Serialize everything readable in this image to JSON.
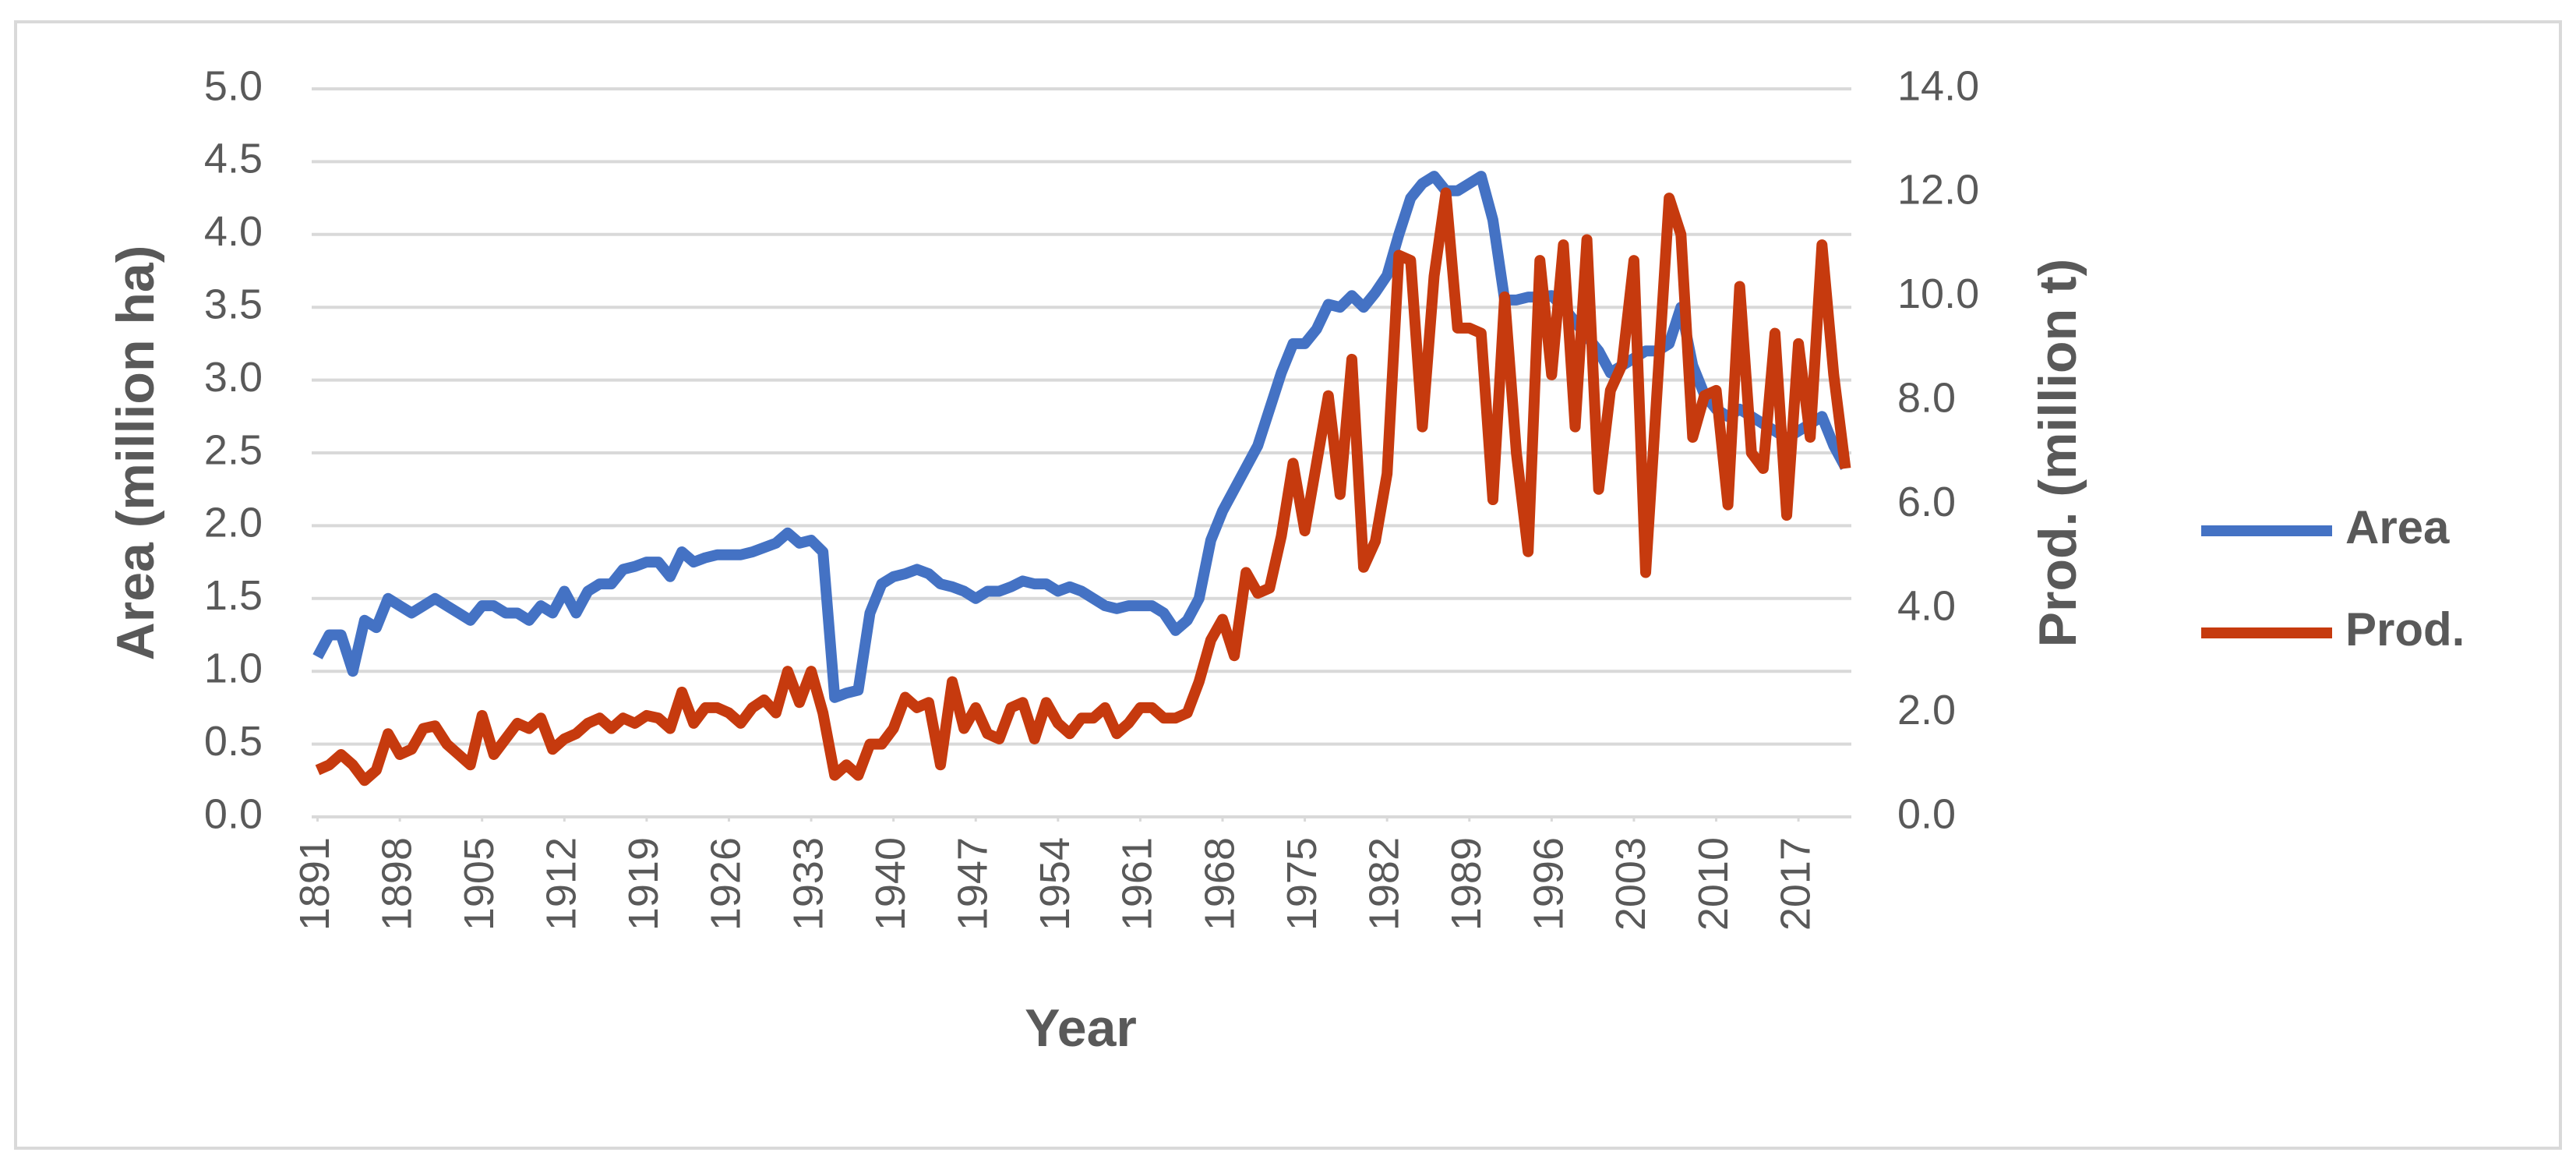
{
  "chart_data": {
    "type": "line",
    "x_label": "Year",
    "y_label": "Area (million ha)",
    "y2_label": "Prod. (million t)",
    "x": [
      1891,
      1892,
      1893,
      1894,
      1895,
      1896,
      1897,
      1898,
      1899,
      1900,
      1901,
      1902,
      1903,
      1904,
      1905,
      1906,
      1907,
      1908,
      1909,
      1910,
      1911,
      1912,
      1913,
      1914,
      1915,
      1916,
      1917,
      1918,
      1919,
      1920,
      1921,
      1922,
      1923,
      1924,
      1925,
      1926,
      1927,
      1928,
      1929,
      1930,
      1931,
      1932,
      1933,
      1934,
      1935,
      1936,
      1937,
      1938,
      1939,
      1940,
      1941,
      1942,
      1943,
      1944,
      1945,
      1946,
      1947,
      1948,
      1949,
      1950,
      1951,
      1952,
      1953,
      1954,
      1955,
      1956,
      1957,
      1958,
      1959,
      1960,
      1961,
      1962,
      1963,
      1964,
      1965,
      1966,
      1967,
      1968,
      1969,
      1970,
      1971,
      1972,
      1973,
      1974,
      1975,
      1976,
      1977,
      1978,
      1979,
      1980,
      1981,
      1982,
      1983,
      1984,
      1985,
      1986,
      1987,
      1988,
      1989,
      1990,
      1991,
      1992,
      1993,
      1994,
      1995,
      1996,
      1997,
      1998,
      1999,
      2000,
      2001,
      2002,
      2003,
      2004,
      2005,
      2006,
      2007,
      2008,
      2009,
      2010,
      2011,
      2012,
      2013,
      2014,
      2015,
      2016,
      2017,
      2018,
      2019,
      2020,
      2021
    ],
    "xlim": [
      1890.5,
      2021.5
    ],
    "xticks": [
      1891,
      1898,
      1905,
      1912,
      1919,
      1926,
      1933,
      1940,
      1947,
      1954,
      1961,
      1968,
      1975,
      1982,
      1989,
      1996,
      2003,
      2010,
      2017
    ],
    "ylim": [
      0,
      5
    ],
    "yticks": [
      {
        "value": 0,
        "label": "0.0"
      },
      0.5,
      {
        "value": 1,
        "label": "1.0"
      },
      1.5,
      {
        "value": 2,
        "label": "2.0"
      },
      2.5,
      {
        "value": 3,
        "label": "3.0"
      },
      3.5,
      {
        "value": 4,
        "label": "4.0"
      },
      4.5,
      {
        "value": 5,
        "label": "5.0"
      }
    ],
    "y2lim": [
      0,
      14
    ],
    "y2ticks": [
      {
        "value": 0,
        "label": "0.0"
      },
      {
        "value": 2,
        "label": "2.0"
      },
      {
        "value": 4,
        "label": "4.0"
      },
      {
        "value": 6,
        "label": "6.0"
      },
      {
        "value": 8,
        "label": "8.0"
      },
      {
        "value": 10,
        "label": "10.0"
      },
      {
        "value": 12,
        "label": "12.0"
      },
      {
        "value": 14,
        "label": "14.0"
      }
    ],
    "grid": true,
    "legend": "right",
    "series": [
      {
        "name": "Area",
        "color": "#4472c4",
        "values": [
          1.1,
          1.25,
          1.25,
          1.0,
          1.35,
          1.3,
          1.5,
          1.45,
          1.4,
          1.45,
          1.5,
          1.45,
          1.4,
          1.35,
          1.45,
          1.45,
          1.4,
          1.4,
          1.35,
          1.45,
          1.4,
          1.55,
          1.4,
          1.55,
          1.6,
          1.6,
          1.7,
          1.72,
          1.75,
          1.75,
          1.65,
          1.82,
          1.75,
          1.78,
          1.8,
          1.8,
          1.8,
          1.82,
          1.85,
          1.88,
          1.95,
          1.88,
          1.9,
          1.82,
          0.82,
          0.85,
          0.87,
          1.4,
          1.6,
          1.65,
          1.67,
          1.7,
          1.67,
          1.6,
          1.58,
          1.55,
          1.5,
          1.55,
          1.55,
          1.58,
          1.62,
          1.6,
          1.6,
          1.55,
          1.58,
          1.55,
          1.5,
          1.45,
          1.43,
          1.45,
          1.45,
          1.45,
          1.4,
          1.28,
          1.35,
          1.5,
          1.9,
          2.1,
          2.25,
          2.4,
          2.55,
          2.8,
          3.05,
          3.25,
          3.25,
          3.35,
          3.52,
          3.5,
          3.58,
          3.5,
          3.6,
          3.72,
          4.0,
          4.25,
          4.35,
          4.4,
          4.3,
          4.3,
          4.35,
          4.4,
          4.1,
          3.55,
          3.55,
          3.57,
          3.57,
          3.58,
          3.5,
          3.4,
          3.3,
          3.2,
          3.05,
          3.1,
          3.15,
          3.2,
          3.2,
          3.25,
          3.5,
          3.1,
          2.9,
          2.8,
          2.75,
          2.8,
          2.75,
          2.7,
          2.65,
          2.6,
          2.65,
          2.7,
          2.75,
          2.55,
          2.4
        ]
      },
      {
        "name": "Prod.",
        "color": "#c63a0e",
        "axis": "y2",
        "values": [
          0.9,
          1.0,
          1.2,
          1.0,
          0.7,
          0.9,
          1.6,
          1.2,
          1.3,
          1.7,
          1.75,
          1.4,
          1.2,
          1.0,
          1.95,
          1.2,
          1.5,
          1.8,
          1.7,
          1.9,
          1.3,
          1.5,
          1.6,
          1.8,
          1.9,
          1.7,
          1.9,
          1.8,
          1.95,
          1.9,
          1.7,
          2.4,
          1.8,
          2.1,
          2.1,
          2.0,
          1.8,
          2.1,
          2.25,
          2.0,
          2.8,
          2.2,
          2.8,
          2.0,
          0.8,
          1.0,
          0.8,
          1.4,
          1.4,
          1.7,
          2.3,
          2.1,
          2.2,
          1.0,
          2.6,
          1.7,
          2.1,
          1.6,
          1.5,
          2.1,
          2.2,
          1.5,
          2.2,
          1.8,
          1.6,
          1.9,
          1.9,
          2.1,
          1.6,
          1.8,
          2.1,
          2.1,
          1.9,
          1.9,
          2.0,
          2.6,
          3.4,
          3.8,
          3.1,
          4.7,
          4.3,
          4.4,
          5.4,
          6.8,
          5.5,
          6.8,
          8.1,
          6.2,
          8.8,
          4.8,
          5.3,
          6.6,
          10.8,
          10.7,
          7.5,
          10.4,
          12.0,
          9.4,
          9.4,
          9.3,
          6.1,
          10.0,
          7.0,
          5.1,
          10.7,
          8.5,
          11.0,
          7.5,
          11.1,
          6.3,
          8.2,
          8.7,
          10.7,
          4.7,
          8.3,
          11.9,
          11.2,
          7.3,
          8.1,
          8.2,
          6.0,
          10.2,
          7.0,
          6.7,
          9.3,
          5.8,
          9.1,
          7.3,
          11.0,
          8.5,
          6.7
        ]
      }
    ]
  }
}
